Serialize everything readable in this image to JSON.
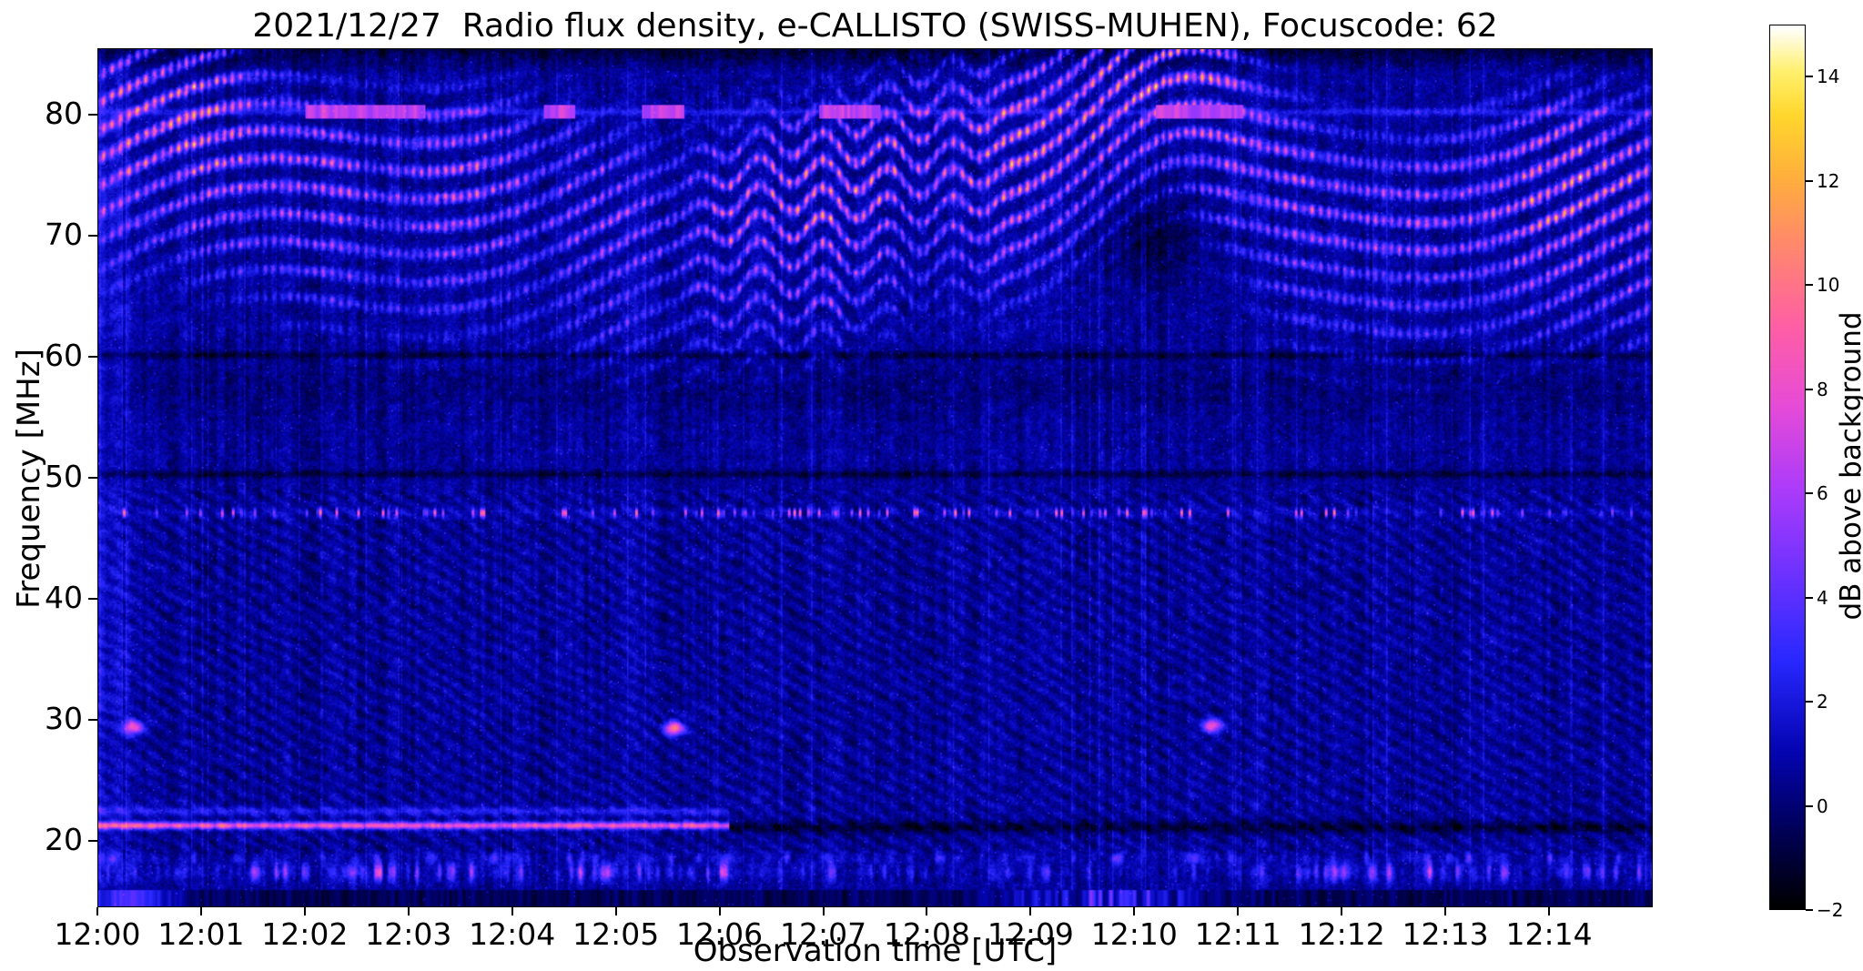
{
  "title": "2021/12/27  Radio flux density, e-CALLISTO (SWISS-MUHEN), Focuscode: 62",
  "axes": {
    "x_label": "Observation time [UTC]",
    "y_label": "Frequency [MHz]",
    "x_ticks": [
      {
        "label": "12:00",
        "value": 0
      },
      {
        "label": "12:01",
        "value": 1
      },
      {
        "label": "12:02",
        "value": 2
      },
      {
        "label": "12:03",
        "value": 3
      },
      {
        "label": "12:04",
        "value": 4
      },
      {
        "label": "12:05",
        "value": 5
      },
      {
        "label": "12:06",
        "value": 6
      },
      {
        "label": "12:07",
        "value": 7
      },
      {
        "label": "12:08",
        "value": 8
      },
      {
        "label": "12:09",
        "value": 9
      },
      {
        "label": "12:10",
        "value": 10
      },
      {
        "label": "12:11",
        "value": 11
      },
      {
        "label": "12:12",
        "value": 12
      },
      {
        "label": "12:13",
        "value": 13
      },
      {
        "label": "12:14",
        "value": 14
      }
    ],
    "y_ticks": [
      {
        "label": "80",
        "value": 80
      },
      {
        "label": "70",
        "value": 70
      },
      {
        "label": "60",
        "value": 60
      },
      {
        "label": "50",
        "value": 50
      },
      {
        "label": "40",
        "value": 40
      },
      {
        "label": "30",
        "value": 30
      },
      {
        "label": "20",
        "value": 20
      }
    ]
  },
  "colorbar": {
    "label": "dB above background",
    "min": -2,
    "max": 15,
    "ticks": [
      {
        "label": "14",
        "value": 14
      },
      {
        "label": "12",
        "value": 12
      },
      {
        "label": "10",
        "value": 10
      },
      {
        "label": "8",
        "value": 8
      },
      {
        "label": "6",
        "value": 6
      },
      {
        "label": "4",
        "value": 4
      },
      {
        "label": "2",
        "value": 2
      },
      {
        "label": "0",
        "value": 0
      },
      {
        "label": "−2",
        "value": -2
      }
    ]
  },
  "chart_data": {
    "type": "heatmap",
    "title": "2021/12/27  Radio flux density, e-CALLISTO (SWISS-MUHEN), Focuscode: 62",
    "xlabel": "Observation time [UTC]",
    "ylabel": "Frequency [MHz]",
    "x_range_utc": [
      "12:00",
      "12:15"
    ],
    "duration_min": 15,
    "freq_range_mhz": [
      14.5,
      85.5
    ],
    "value_range_db": [
      -2,
      15
    ],
    "colormap": "gnuplot2-like (black-blue-violet-pink-orange-yellow-white)",
    "colormap_stops": [
      [
        0.0,
        [
          0,
          0,
          0
        ]
      ],
      [
        0.09,
        [
          0,
          0,
          90
        ]
      ],
      [
        0.18,
        [
          5,
          5,
          180
        ]
      ],
      [
        0.28,
        [
          40,
          40,
          255
        ]
      ],
      [
        0.38,
        [
          110,
          50,
          255
        ]
      ],
      [
        0.48,
        [
          175,
          60,
          250
        ]
      ],
      [
        0.57,
        [
          230,
          75,
          215
        ]
      ],
      [
        0.66,
        [
          255,
          95,
          165
        ]
      ],
      [
        0.75,
        [
          255,
          135,
          110
        ]
      ],
      [
        0.83,
        [
          255,
          175,
          60
        ]
      ],
      [
        0.9,
        [
          255,
          215,
          45
        ]
      ],
      [
        0.95,
        [
          255,
          240,
          110
        ]
      ],
      [
        1.0,
        [
          255,
          255,
          255
        ]
      ]
    ],
    "features": {
      "background_mean_db": 0.6,
      "iono_band": {
        "description": "wavy ionospheric interference fringes 60-85 MHz, strongest 68-82 MHz",
        "center_mhz": 74.5,
        "fringe_spacing_mhz": 2.3,
        "max_db": 9.2,
        "arch_t_min": 10.25,
        "arch_rise_mhz": 7.5,
        "dip_t_min": 7.15,
        "dip_drop_mhz": 3.5
      },
      "carrier_80mhz": {
        "description": "intermittent bright carrier line near 80 MHz",
        "freq_mhz": 80.35,
        "db": 5.2,
        "segments_min": [
          [
            2.0,
            3.15
          ],
          [
            4.3,
            4.6
          ],
          [
            5.25,
            5.65
          ],
          [
            6.95,
            7.55
          ],
          [
            10.2,
            11.05
          ]
        ]
      },
      "line_21mhz": {
        "description": "bright pink band at ~21.3 MHz until ~12:06, dark lane afterwards",
        "freq_mhz": 21.25,
        "db": 7.8,
        "end_min": 6.08
      },
      "speckle_47mhz": {
        "description": "speckled RFI row of hot dots at ~47 MHz across full duration",
        "freq_mhz": 47.15,
        "max_db": 9
      },
      "dark_lines_mhz": [
        50.35,
        60.2
      ],
      "bottom_bursts": {
        "description": "intermittent pink/orange bursts 16.5-18.5 MHz, strongest 12:01-12:06 and 12:12-12:15",
        "freq_mhz": 17.4,
        "max_db": 9
      },
      "blobs": [
        {
          "t_min": 0.33,
          "freq_mhz": 29.4,
          "db": 8
        },
        {
          "t_min": 5.55,
          "freq_mhz": 29.3,
          "db": 10
        },
        {
          "t_min": 10.75,
          "freq_mhz": 29.5,
          "db": 8
        }
      ]
    }
  }
}
